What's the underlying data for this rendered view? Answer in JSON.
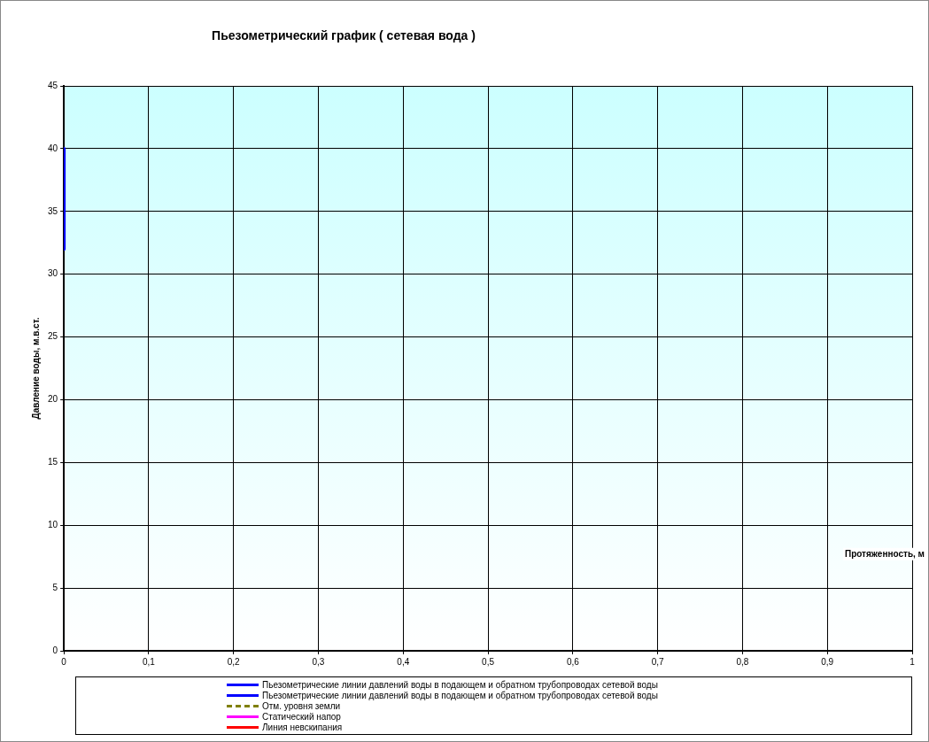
{
  "chart_data": {
    "type": "line",
    "title": "Пьезометрический график ( сетевая вода )",
    "xlabel": "Протяженность, м",
    "ylabel": "Давление воды, м.в.ст.",
    "x": [
      0,
      0
    ],
    "series": [
      {
        "name": "Пьезометрические линии давлений воды в подающем и обратном трубопроводах сетевой воды",
        "color": "#0000ff",
        "values": [
          40,
          32
        ]
      },
      {
        "name": "Пьезометрические линии давлений воды в подающем и обратном трубопроводах сетевой воды",
        "color": "#0000ff",
        "values": [
          null,
          null
        ]
      },
      {
        "name": "Отм. уровня земли",
        "color": "#808000",
        "values": [
          null,
          null
        ],
        "line_style": "dashed"
      },
      {
        "name": "Статический напор",
        "color": "#ff00ff",
        "values": [
          null,
          null
        ]
      },
      {
        "name": "Линия невскипания",
        "color": "#ff0000",
        "values": [
          null,
          null
        ]
      }
    ],
    "xlim": [
      0,
      1
    ],
    "ylim": [
      0,
      45
    ],
    "xticks": [
      0,
      {
        "value": 0.1,
        "label": "0,1"
      },
      {
        "value": 0.2,
        "label": "0,2"
      },
      {
        "value": 0.3,
        "label": "0,3"
      },
      {
        "value": 0.4,
        "label": "0,4"
      },
      {
        "value": 0.5,
        "label": "0,5"
      },
      {
        "value": 0.6,
        "label": "0,6"
      },
      {
        "value": 0.7,
        "label": "0,7"
      },
      {
        "value": 0.8,
        "label": "0,8"
      },
      {
        "value": 0.9,
        "label": "0,9"
      },
      1
    ],
    "yticks": [
      0,
      5,
      10,
      15,
      20,
      25,
      30,
      35,
      40,
      45
    ],
    "grid": true,
    "legend": "bottom",
    "line_style": "solid"
  }
}
